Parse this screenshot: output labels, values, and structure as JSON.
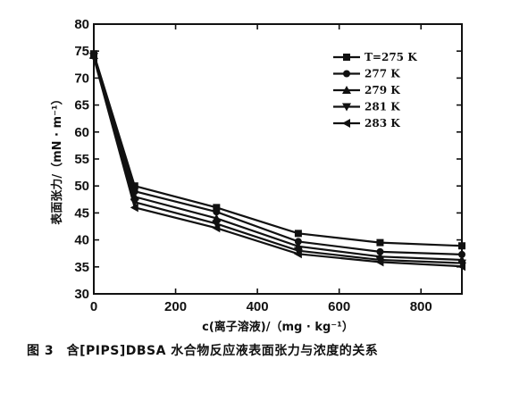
{
  "chart_data": {
    "type": "line",
    "x": [
      0,
      100,
      300,
      500,
      700,
      900
    ],
    "xlim": [
      0,
      900
    ],
    "ylim": [
      30,
      80
    ],
    "x_ticks": [
      0,
      200,
      400,
      600,
      800
    ],
    "y_ticks": [
      30,
      35,
      40,
      45,
      50,
      55,
      60,
      65,
      70,
      75,
      80
    ],
    "xlabel": "c(离子溶液)/（mg · kg⁻¹）",
    "ylabel": "表面张力/（mN · m⁻¹）",
    "legend_position": "top-right",
    "grid": false,
    "series": [
      {
        "name": "T=275 K",
        "marker": "square",
        "values": [
          74.5,
          50.0,
          46.0,
          41.2,
          39.5,
          38.9
        ]
      },
      {
        "name": "277 K",
        "marker": "circle",
        "values": [
          74.3,
          49.0,
          45.2,
          39.7,
          37.8,
          37.3
        ]
      },
      {
        "name": "279 K",
        "marker": "triangle-up",
        "values": [
          74.2,
          48.0,
          44.0,
          38.8,
          36.9,
          36.3
        ]
      },
      {
        "name": "281 K",
        "marker": "triangle-down",
        "values": [
          74.0,
          47.0,
          43.0,
          38.0,
          36.3,
          35.7
        ]
      },
      {
        "name": "283 K",
        "marker": "triangle-left",
        "values": [
          73.8,
          46.0,
          42.2,
          37.4,
          35.9,
          35.1
        ]
      }
    ],
    "caption": "图 3　含[PIPS]DBSA 水合物反应液表面张力与浓度的关系"
  }
}
